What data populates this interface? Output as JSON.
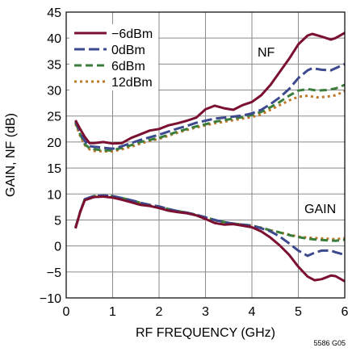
{
  "chart_data": {
    "type": "line",
    "xlabel": "RF FREQUENCY (GHz)",
    "ylabel": "GAIN, NF (dB)",
    "xlim": [
      0,
      6
    ],
    "ylim": [
      -10,
      45
    ],
    "x_ticks": [
      "0",
      "1",
      "2",
      "3",
      "4",
      "5",
      "6"
    ],
    "y_ticks": [
      "−10",
      "−5",
      "0",
      "5",
      "10",
      "15",
      "20",
      "25",
      "30",
      "35",
      "40",
      "45"
    ],
    "grid": true,
    "legend_position": "top-left",
    "annotations": [
      "NF",
      "GAIN"
    ],
    "figure_code": "5586 G05",
    "series": [
      {
        "name": "−6dBm",
        "color": "#7b1030",
        "dash": "solid",
        "nf": [
          [
            0.2,
            24.2
          ],
          [
            0.3,
            22.5
          ],
          [
            0.4,
            21.0
          ],
          [
            0.5,
            19.8
          ],
          [
            0.6,
            19.8
          ],
          [
            0.8,
            20.0
          ],
          [
            1.0,
            19.7
          ],
          [
            1.2,
            19.8
          ],
          [
            1.4,
            20.8
          ],
          [
            1.6,
            21.5
          ],
          [
            1.8,
            22.2
          ],
          [
            2.0,
            22.5
          ],
          [
            2.2,
            23.2
          ],
          [
            2.4,
            23.6
          ],
          [
            2.6,
            24.1
          ],
          [
            2.8,
            24.7
          ],
          [
            3.0,
            26.3
          ],
          [
            3.2,
            27.0
          ],
          [
            3.4,
            26.5
          ],
          [
            3.6,
            26.2
          ],
          [
            3.8,
            27.1
          ],
          [
            4.0,
            27.7
          ],
          [
            4.2,
            29.0
          ],
          [
            4.4,
            31.0
          ],
          [
            4.6,
            33.5
          ],
          [
            4.8,
            36.0
          ],
          [
            5.0,
            38.8
          ],
          [
            5.2,
            40.5
          ],
          [
            5.3,
            40.8
          ],
          [
            5.5,
            40.3
          ],
          [
            5.7,
            39.7
          ],
          [
            5.8,
            40.0
          ],
          [
            6.0,
            41.0
          ]
        ],
        "gain": [
          [
            0.2,
            3.4
          ],
          [
            0.3,
            6.5
          ],
          [
            0.4,
            8.8
          ],
          [
            0.6,
            9.4
          ],
          [
            0.8,
            9.5
          ],
          [
            1.0,
            9.3
          ],
          [
            1.2,
            8.9
          ],
          [
            1.4,
            8.4
          ],
          [
            1.6,
            7.9
          ],
          [
            1.8,
            7.7
          ],
          [
            2.0,
            7.3
          ],
          [
            2.2,
            6.8
          ],
          [
            2.4,
            6.5
          ],
          [
            2.6,
            6.3
          ],
          [
            2.8,
            5.9
          ],
          [
            3.0,
            5.2
          ],
          [
            3.2,
            4.4
          ],
          [
            3.4,
            4.1
          ],
          [
            3.6,
            4.2
          ],
          [
            3.8,
            3.9
          ],
          [
            4.0,
            3.6
          ],
          [
            4.2,
            2.8
          ],
          [
            4.4,
            1.6
          ],
          [
            4.6,
            0.1
          ],
          [
            4.8,
            -1.7
          ],
          [
            5.0,
            -4.0
          ],
          [
            5.2,
            -5.9
          ],
          [
            5.35,
            -6.6
          ],
          [
            5.5,
            -6.4
          ],
          [
            5.7,
            -5.7
          ],
          [
            5.8,
            -5.8
          ],
          [
            6.0,
            -6.8
          ]
        ]
      },
      {
        "name": "0dBm",
        "color": "#3d4a8e",
        "dash": "long",
        "nf": [
          [
            0.2,
            24.0
          ],
          [
            0.3,
            22.0
          ],
          [
            0.4,
            20.2
          ],
          [
            0.5,
            19.2
          ],
          [
            0.6,
            19.1
          ],
          [
            0.8,
            18.9
          ],
          [
            1.0,
            18.7
          ],
          [
            1.2,
            19.2
          ],
          [
            1.4,
            19.8
          ],
          [
            1.6,
            20.4
          ],
          [
            1.8,
            20.9
          ],
          [
            2.0,
            21.4
          ],
          [
            2.2,
            22.0
          ],
          [
            2.4,
            22.6
          ],
          [
            2.6,
            23.1
          ],
          [
            2.8,
            23.7
          ],
          [
            3.0,
            24.1
          ],
          [
            3.2,
            24.5
          ],
          [
            3.4,
            24.7
          ],
          [
            3.6,
            24.9
          ],
          [
            3.8,
            25.1
          ],
          [
            4.0,
            25.5
          ],
          [
            4.2,
            26.2
          ],
          [
            4.4,
            27.3
          ],
          [
            4.6,
            28.6
          ],
          [
            4.8,
            30.2
          ],
          [
            5.0,
            32.3
          ],
          [
            5.2,
            33.8
          ],
          [
            5.3,
            34.2
          ],
          [
            5.5,
            33.9
          ],
          [
            5.7,
            33.8
          ],
          [
            6.0,
            35.0
          ]
        ],
        "gain": [
          [
            0.2,
            3.5
          ],
          [
            0.3,
            6.6
          ],
          [
            0.4,
            9.0
          ],
          [
            0.6,
            9.6
          ],
          [
            0.8,
            9.7
          ],
          [
            1.0,
            9.6
          ],
          [
            1.2,
            9.2
          ],
          [
            1.4,
            8.8
          ],
          [
            1.6,
            8.3
          ],
          [
            1.8,
            7.9
          ],
          [
            2.0,
            7.6
          ],
          [
            2.2,
            7.1
          ],
          [
            2.4,
            6.7
          ],
          [
            2.6,
            6.4
          ],
          [
            2.8,
            6.0
          ],
          [
            3.0,
            5.5
          ],
          [
            3.2,
            5.0
          ],
          [
            3.4,
            4.6
          ],
          [
            3.6,
            4.3
          ],
          [
            3.8,
            4.1
          ],
          [
            4.0,
            3.9
          ],
          [
            4.2,
            3.4
          ],
          [
            4.4,
            2.8
          ],
          [
            4.6,
            1.8
          ],
          [
            4.8,
            0.5
          ],
          [
            5.0,
            -0.9
          ],
          [
            5.2,
            -1.9
          ],
          [
            5.35,
            -1.3
          ],
          [
            5.5,
            -0.9
          ],
          [
            5.7,
            -0.9
          ],
          [
            5.8,
            -1.2
          ],
          [
            6.0,
            -1.7
          ]
        ]
      },
      {
        "name": "6dBm",
        "color": "#3a7d3a",
        "dash": "medium",
        "nf": [
          [
            0.2,
            23.8
          ],
          [
            0.3,
            21.5
          ],
          [
            0.4,
            19.6
          ],
          [
            0.5,
            18.8
          ],
          [
            0.6,
            18.6
          ],
          [
            0.8,
            18.4
          ],
          [
            1.0,
            18.4
          ],
          [
            1.2,
            18.9
          ],
          [
            1.4,
            19.4
          ],
          [
            1.6,
            20.0
          ],
          [
            1.8,
            20.4
          ],
          [
            2.0,
            20.8
          ],
          [
            2.2,
            21.4
          ],
          [
            2.4,
            22.0
          ],
          [
            2.6,
            22.5
          ],
          [
            2.8,
            23.0
          ],
          [
            3.0,
            23.4
          ],
          [
            3.2,
            23.9
          ],
          [
            3.4,
            24.2
          ],
          [
            3.6,
            24.5
          ],
          [
            3.8,
            24.8
          ],
          [
            4.0,
            25.2
          ],
          [
            4.2,
            25.8
          ],
          [
            4.4,
            26.7
          ],
          [
            4.6,
            27.7
          ],
          [
            4.8,
            28.9
          ],
          [
            5.0,
            29.9
          ],
          [
            5.2,
            30.2
          ],
          [
            5.4,
            29.9
          ],
          [
            5.6,
            30.0
          ],
          [
            5.8,
            30.3
          ],
          [
            6.0,
            31.0
          ]
        ],
        "gain": [
          [
            0.2,
            3.5
          ],
          [
            0.3,
            6.6
          ],
          [
            0.4,
            9.0
          ],
          [
            0.6,
            9.6
          ],
          [
            0.8,
            9.7
          ],
          [
            1.0,
            9.6
          ],
          [
            1.2,
            9.2
          ],
          [
            1.4,
            8.8
          ],
          [
            1.6,
            8.3
          ],
          [
            1.8,
            7.9
          ],
          [
            2.0,
            7.6
          ],
          [
            2.2,
            7.1
          ],
          [
            2.4,
            6.7
          ],
          [
            2.6,
            6.4
          ],
          [
            2.8,
            6.0
          ],
          [
            3.0,
            5.5
          ],
          [
            3.2,
            5.0
          ],
          [
            3.4,
            4.6
          ],
          [
            3.6,
            4.3
          ],
          [
            3.8,
            4.1
          ],
          [
            4.0,
            3.9
          ],
          [
            4.2,
            3.5
          ],
          [
            4.4,
            3.0
          ],
          [
            4.6,
            2.6
          ],
          [
            4.8,
            2.1
          ],
          [
            5.0,
            1.7
          ],
          [
            5.2,
            1.4
          ],
          [
            5.4,
            1.2
          ],
          [
            5.6,
            1.1
          ],
          [
            5.8,
            1.0
          ],
          [
            6.0,
            1.2
          ]
        ]
      },
      {
        "name": "12dBm",
        "color": "#c0782a",
        "dash": "dotted",
        "nf": [
          [
            0.2,
            23.5
          ],
          [
            0.3,
            21.2
          ],
          [
            0.4,
            19.4
          ],
          [
            0.5,
            18.6
          ],
          [
            0.6,
            18.3
          ],
          [
            0.8,
            18.2
          ],
          [
            1.0,
            18.2
          ],
          [
            1.2,
            18.6
          ],
          [
            1.4,
            19.1
          ],
          [
            1.6,
            19.7
          ],
          [
            1.8,
            20.2
          ],
          [
            2.0,
            20.6
          ],
          [
            2.2,
            21.2
          ],
          [
            2.4,
            21.8
          ],
          [
            2.6,
            22.3
          ],
          [
            2.8,
            22.8
          ],
          [
            3.0,
            23.2
          ],
          [
            3.2,
            23.6
          ],
          [
            3.4,
            23.9
          ],
          [
            3.6,
            24.2
          ],
          [
            3.8,
            24.5
          ],
          [
            4.0,
            24.8
          ],
          [
            4.2,
            25.3
          ],
          [
            4.4,
            26.2
          ],
          [
            4.6,
            27.1
          ],
          [
            4.8,
            28.0
          ],
          [
            5.0,
            28.7
          ],
          [
            5.2,
            28.9
          ],
          [
            5.4,
            28.6
          ],
          [
            5.6,
            28.7
          ],
          [
            5.8,
            29.0
          ],
          [
            6.0,
            29.8
          ]
        ],
        "gain": [
          [
            0.2,
            3.4
          ],
          [
            0.3,
            6.5
          ],
          [
            0.4,
            8.9
          ],
          [
            0.6,
            9.5
          ],
          [
            0.8,
            9.6
          ],
          [
            1.0,
            9.5
          ],
          [
            1.2,
            9.1
          ],
          [
            1.4,
            8.7
          ],
          [
            1.6,
            8.2
          ],
          [
            1.8,
            7.8
          ],
          [
            2.0,
            7.5
          ],
          [
            2.2,
            7.0
          ],
          [
            2.4,
            6.6
          ],
          [
            2.6,
            6.3
          ],
          [
            2.8,
            5.9
          ],
          [
            3.0,
            5.4
          ],
          [
            3.2,
            4.9
          ],
          [
            3.4,
            4.5
          ],
          [
            3.6,
            4.3
          ],
          [
            3.8,
            4.1
          ],
          [
            4.0,
            3.9
          ],
          [
            4.2,
            3.5
          ],
          [
            4.4,
            3.0
          ],
          [
            4.6,
            2.6
          ],
          [
            4.8,
            2.2
          ],
          [
            5.0,
            1.8
          ],
          [
            5.2,
            1.6
          ],
          [
            5.4,
            1.5
          ],
          [
            5.6,
            1.4
          ],
          [
            5.8,
            1.3
          ],
          [
            6.0,
            1.5
          ]
        ]
      }
    ]
  }
}
